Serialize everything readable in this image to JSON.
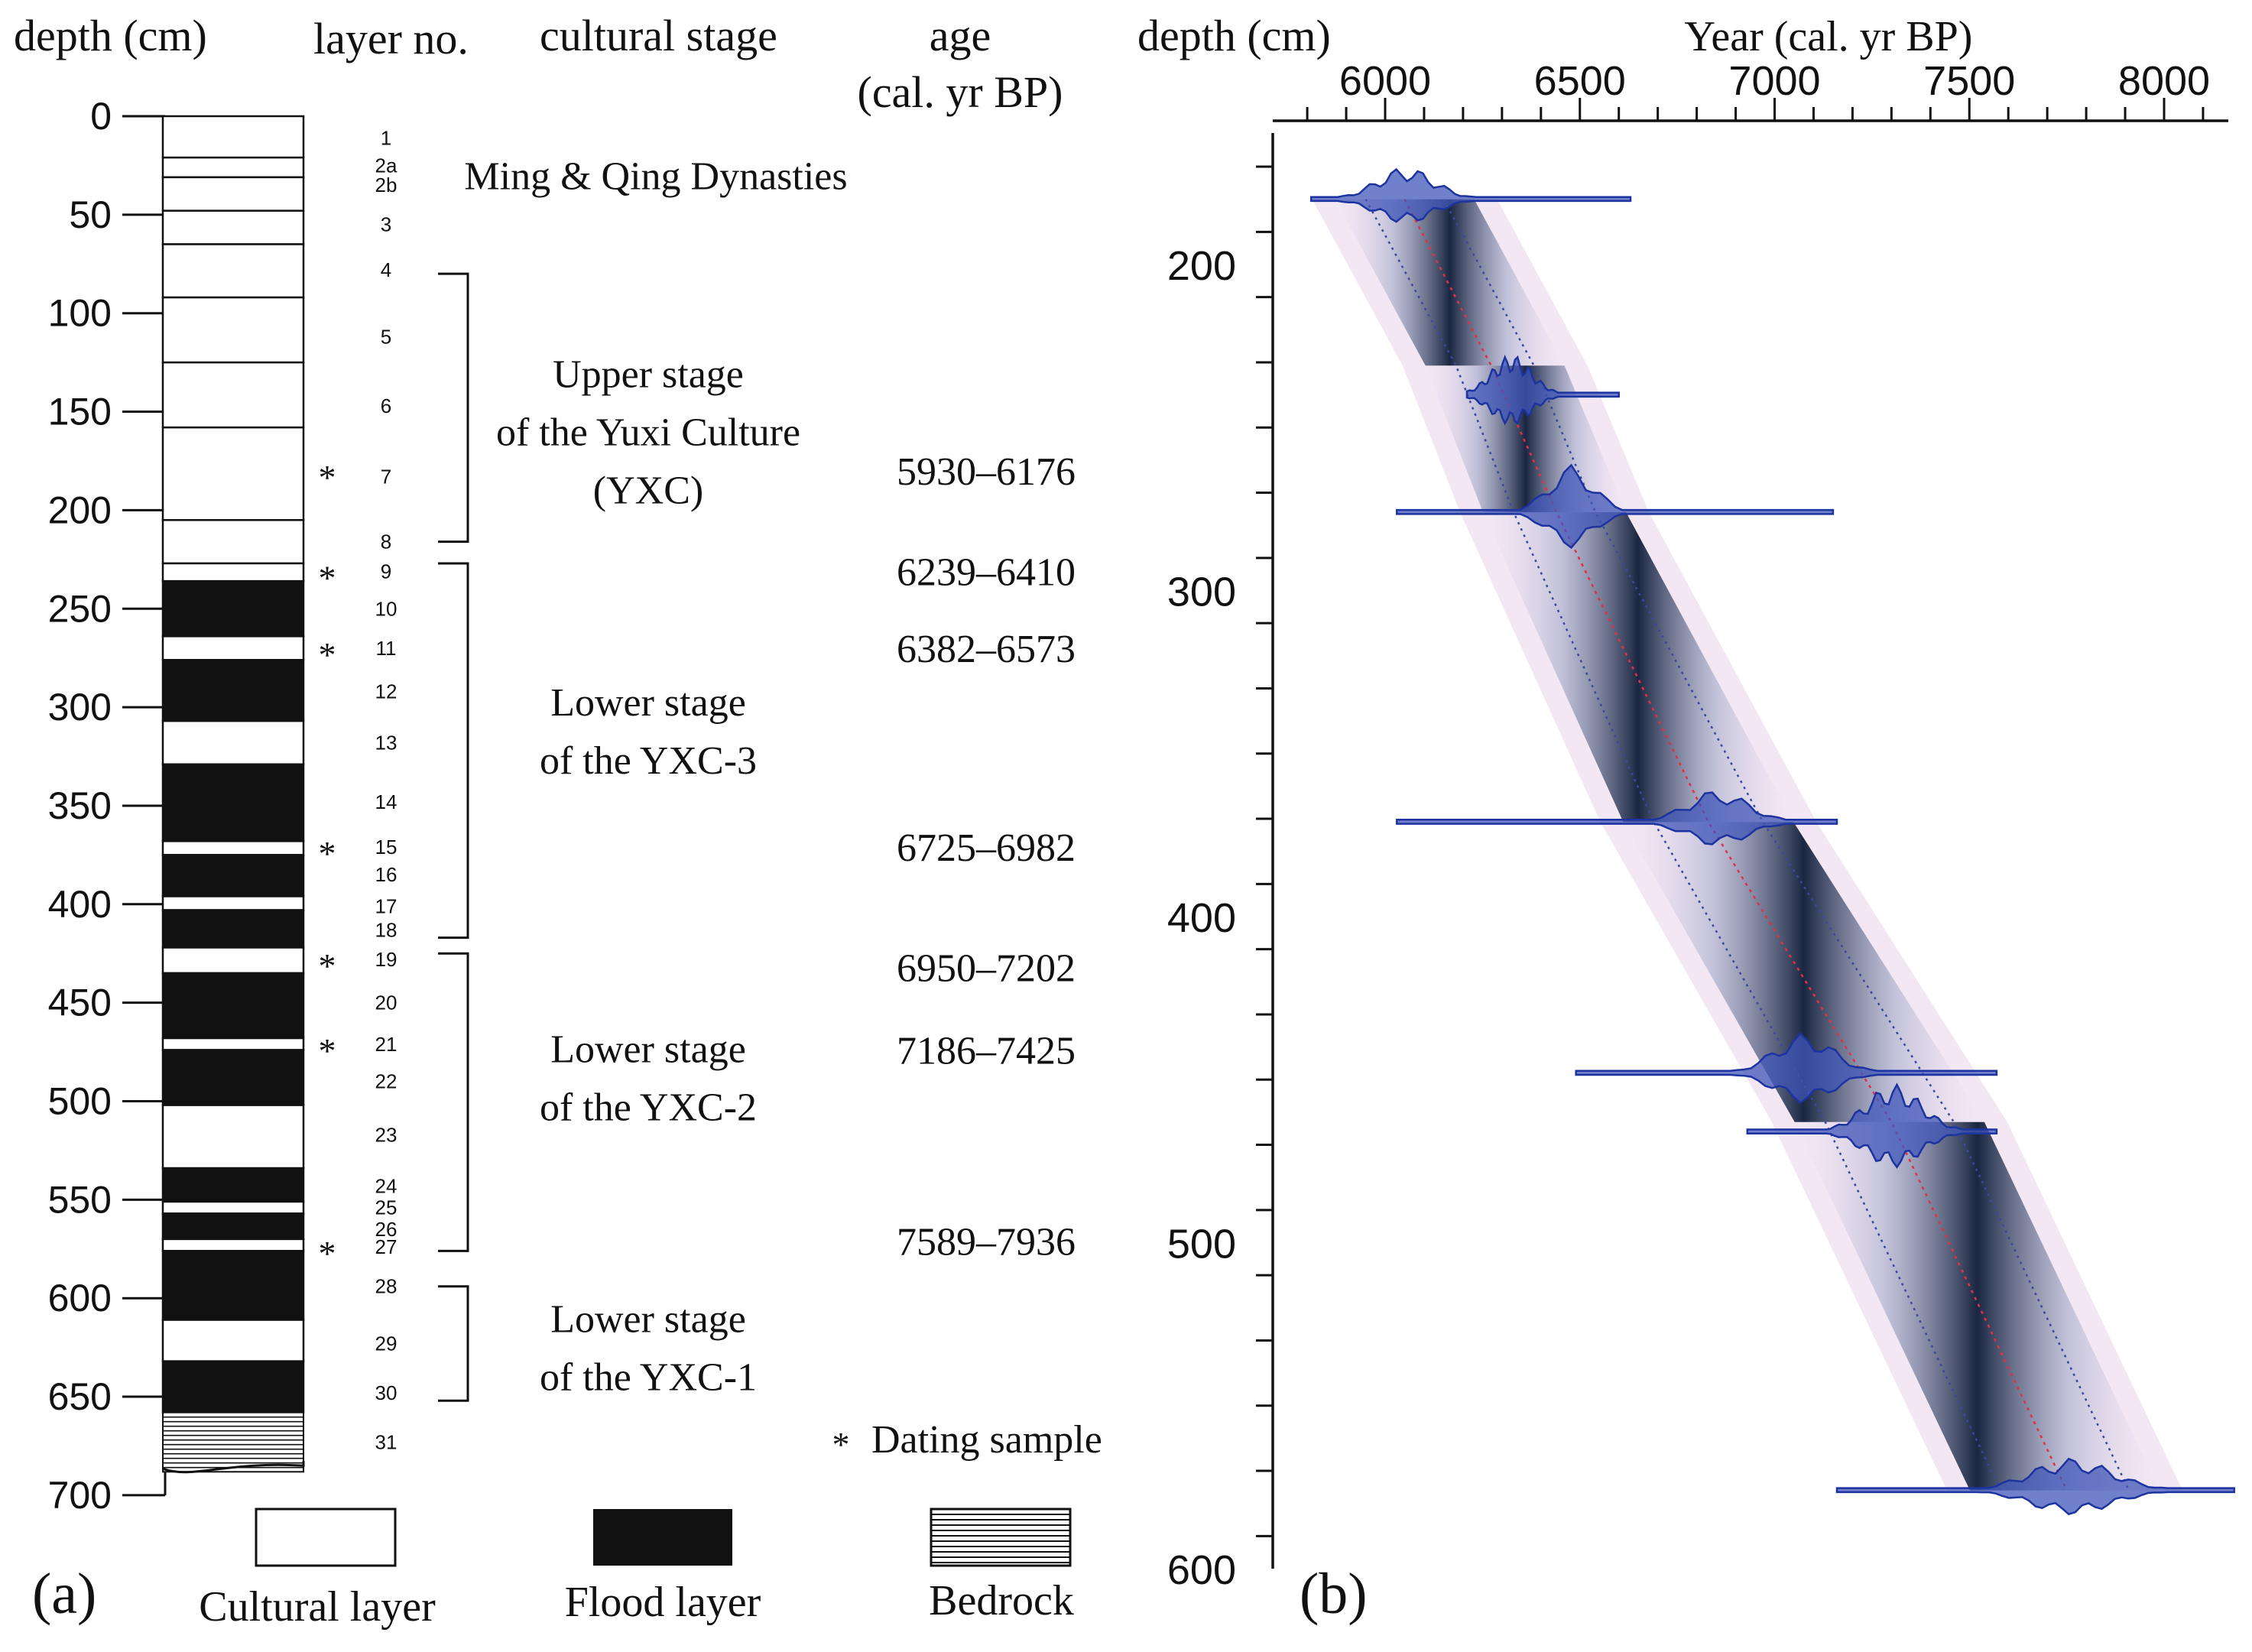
{
  "panel_a": {
    "headers": {
      "depth": "depth (cm)",
      "layer": "layer no.",
      "stage": "cultural stage",
      "age_line1": "age",
      "age_line2": "(cal. yr BP)"
    },
    "depth_axis": {
      "min": 0,
      "max": 700,
      "step": 50
    },
    "layers": [
      {
        "no": "1",
        "top": 0,
        "bottom": 21,
        "type": "cultural"
      },
      {
        "no": "2a",
        "top": 21,
        "bottom": 31,
        "type": "cultural"
      },
      {
        "no": "2b",
        "top": 31,
        "bottom": 48,
        "type": "cultural"
      },
      {
        "no": "3",
        "top": 48,
        "bottom": 65,
        "type": "cultural"
      },
      {
        "no": "4",
        "top": 65,
        "bottom": 92,
        "type": "cultural"
      },
      {
        "no": "5",
        "top": 92,
        "bottom": 125,
        "type": "cultural"
      },
      {
        "no": "6",
        "top": 125,
        "bottom": 158,
        "type": "cultural"
      },
      {
        "no": "7",
        "top": 158,
        "bottom": 205,
        "type": "cultural"
      },
      {
        "no": "8",
        "top": 205,
        "bottom": 227,
        "type": "cultural"
      },
      {
        "no": "9",
        "top": 227,
        "bottom": 236,
        "type": "cultural"
      },
      {
        "no": "10",
        "top": 236,
        "bottom": 264,
        "type": "flood"
      },
      {
        "no": "11",
        "top": 264,
        "bottom": 276,
        "type": "cultural"
      },
      {
        "no": "12",
        "top": 276,
        "bottom": 307,
        "type": "flood"
      },
      {
        "no": "13",
        "top": 307,
        "bottom": 329,
        "type": "cultural"
      },
      {
        "no": "14",
        "top": 329,
        "bottom": 368,
        "type": "flood"
      },
      {
        "no": "15",
        "top": 368,
        "bottom": 375,
        "type": "cultural"
      },
      {
        "no": "16",
        "top": 375,
        "bottom": 396,
        "type": "flood"
      },
      {
        "no": "17",
        "top": 396,
        "bottom": 403,
        "type": "cultural"
      },
      {
        "no": "18",
        "top": 403,
        "bottom": 422,
        "type": "flood"
      },
      {
        "no": "19",
        "top": 422,
        "bottom": 435,
        "type": "cultural"
      },
      {
        "no": "20",
        "top": 435,
        "bottom": 468,
        "type": "flood"
      },
      {
        "no": "21",
        "top": 468,
        "bottom": 474,
        "type": "cultural"
      },
      {
        "no": "22",
        "top": 474,
        "bottom": 502,
        "type": "flood"
      },
      {
        "no": "23",
        "top": 502,
        "bottom": 534,
        "type": "cultural"
      },
      {
        "no": "24",
        "top": 534,
        "bottom": 551,
        "type": "flood"
      },
      {
        "no": "25",
        "top": 551,
        "bottom": 557,
        "type": "cultural"
      },
      {
        "no": "26",
        "top": 557,
        "bottom": 570,
        "type": "flood"
      },
      {
        "no": "27",
        "top": 570,
        "bottom": 576,
        "type": "cultural"
      },
      {
        "no": "28",
        "top": 576,
        "bottom": 611,
        "type": "flood"
      },
      {
        "no": "29",
        "top": 611,
        "bottom": 632,
        "type": "cultural"
      },
      {
        "no": "30",
        "top": 632,
        "bottom": 658,
        "type": "flood"
      },
      {
        "no": "31",
        "top": 658,
        "bottom": 692,
        "type": "bedrock"
      }
    ],
    "layer_label_depths": [
      11,
      25,
      35,
      55,
      78,
      112,
      147,
      183,
      216,
      231,
      250,
      270,
      292,
      318,
      348,
      371,
      385,
      401,
      413,
      428,
      450,
      471,
      490,
      517,
      543,
      554,
      565,
      574,
      594,
      623,
      648,
      673
    ],
    "dating_samples": [
      180,
      231,
      270,
      371,
      428,
      471,
      574
    ],
    "stages": [
      {
        "lines": [
          "Ming & Qing Dynasties"
        ],
        "center_depth": 30,
        "bracket": null
      },
      {
        "lines": [
          "Upper stage",
          "of the Yuxi Culture",
          "(YXC)"
        ],
        "center_depth": 160,
        "bracket": [
          80,
          216
        ]
      },
      {
        "lines": [
          "Lower stage",
          "of the YXC-3"
        ],
        "center_depth": 312,
        "bracket": [
          227,
          417
        ]
      },
      {
        "lines": [
          "Lower stage",
          "of the YXC-2"
        ],
        "center_depth": 488,
        "bracket": [
          425,
          576
        ]
      },
      {
        "lines": [
          "Lower stage",
          "of the YXC-1"
        ],
        "center_depth": 625,
        "bracket": [
          594,
          652
        ]
      }
    ],
    "ages": [
      {
        "label": "5930–6176",
        "depth": 180
      },
      {
        "label": "6239–6410",
        "depth": 231
      },
      {
        "label": "6382–6573",
        "depth": 270
      },
      {
        "label": "6725–6982",
        "depth": 371
      },
      {
        "label": "6950–7202",
        "depth": 432
      },
      {
        "label": "7186–7425",
        "depth": 474
      },
      {
        "label": "7589–7936",
        "depth": 571
      }
    ],
    "dating_note": "Dating sample",
    "legend": {
      "cultural": "Cultural layer",
      "flood": "Flood layer",
      "bedrock": "Bedrock"
    },
    "panel_label": "(a)"
  },
  "panel_b": {
    "chart_data": {
      "type": "age-depth model",
      "title": "",
      "xlabel": "Year (cal. yr BP)",
      "ylabel": "depth (cm)",
      "xlim": [
        5800,
        8200
      ],
      "ylim": [
        145,
        600
      ],
      "x_ticks": [
        6000,
        6500,
        7000,
        7500,
        8000
      ],
      "y_ticks": [
        200,
        300,
        400,
        500,
        600
      ],
      "model_median": [
        [
          6050,
          180
        ],
        [
          6272,
          231
        ],
        [
          6440,
          276
        ],
        [
          6830,
          371
        ],
        [
          7300,
          463
        ],
        [
          7750,
          576
        ]
      ],
      "model_range_min": [
        [
          5950,
          180
        ],
        [
          6182,
          231
        ],
        [
          6330,
          276
        ],
        [
          6690,
          371
        ],
        [
          7130,
          463
        ],
        [
          7580,
          576
        ]
      ],
      "model_range_max": [
        [
          6150,
          180
        ],
        [
          6382,
          231
        ],
        [
          6540,
          276
        ],
        [
          6970,
          371
        ],
        [
          7460,
          463
        ],
        [
          7910,
          576
        ]
      ],
      "calibrated_dates": [
        {
          "depth": 180,
          "range": [
            5930,
            6176
          ],
          "tail": [
            5810,
            6630
          ]
        },
        {
          "depth": 240,
          "range": [
            6239,
            6410
          ],
          "tail": [
            6210,
            6600
          ]
        },
        {
          "depth": 276,
          "range": [
            6382,
            6573
          ],
          "tail": [
            6030,
            7150
          ]
        },
        {
          "depth": 371,
          "range": [
            6725,
            6982
          ],
          "tail": [
            6030,
            7160
          ]
        },
        {
          "depth": 448,
          "range": [
            6950,
            7202
          ],
          "tail": [
            6490,
            7570
          ]
        },
        {
          "depth": 466,
          "range": [
            7186,
            7425
          ],
          "tail": [
            6930,
            7570
          ]
        },
        {
          "depth": 576,
          "range": [
            7589,
            7936
          ],
          "tail": [
            7160,
            8180
          ]
        }
      ]
    },
    "panel_label": "(b)",
    "colors": {
      "pdf_fill": "#4055b8",
      "pdf_stroke": "#1c33a0",
      "median": "#e0304a",
      "envelope": "#1a2a48",
      "range": "#3a4a9a"
    }
  }
}
